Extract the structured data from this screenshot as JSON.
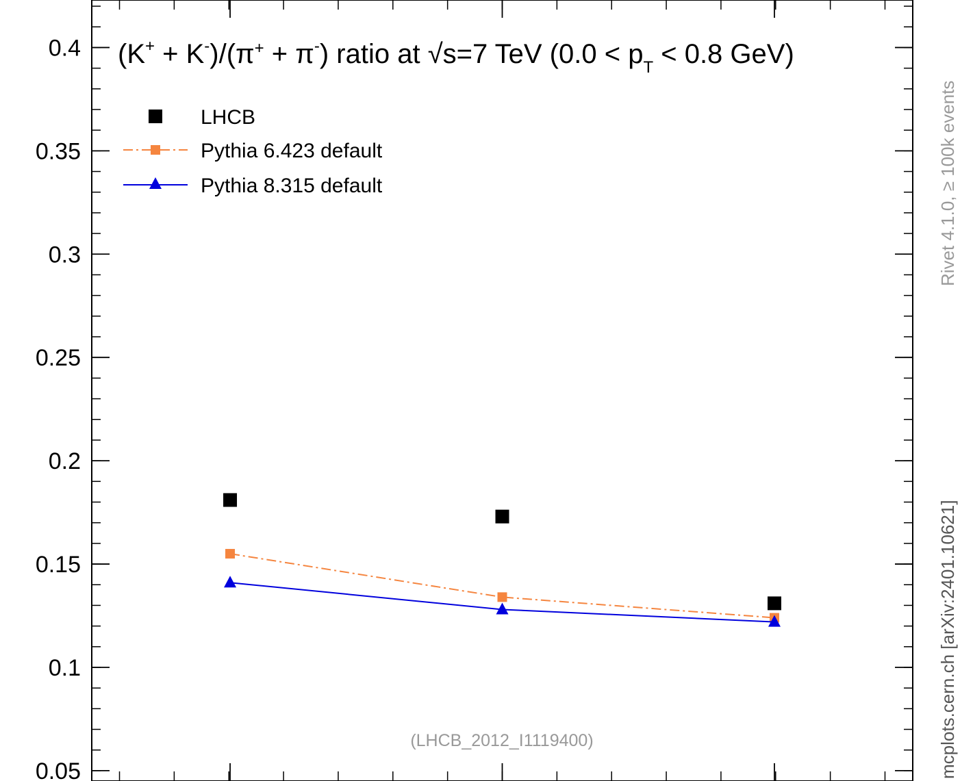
{
  "chart_data": {
    "type": "line",
    "title": {
      "k_base": "(K",
      "k_plus_sup": "+",
      "k_mid": " + K",
      "k_minus_sup": "-",
      "pi_open": ")/(π",
      "pi_plus_sup": "+",
      "pi_mid": " + π",
      "pi_minus_sup": "-",
      "close_text": ") ratio at ",
      "sqrt_sign": "√",
      "sqrt_arg": "s",
      "energy_text": "=7 TeV (0.0 < p",
      "pt_sub": "T",
      "range_end": " < 0.8 GeV)"
    },
    "ylim": [
      0.045,
      0.423
    ],
    "xlim": [
      0,
      1
    ],
    "y_ticks": [
      0.05,
      0.1,
      0.15,
      0.2,
      0.25,
      0.3,
      0.35,
      0.4
    ],
    "y_tick_labels": [
      "0.05",
      "0.1",
      "0.15",
      "0.2",
      "0.25",
      "0.3",
      "0.35",
      "0.4"
    ],
    "y_minor_step": 0.01,
    "x_major_ticks": [
      0.1685,
      0.5,
      0.8315
    ],
    "x_minor_step": 0.0666,
    "x": [
      0.1685,
      0.5,
      0.8315
    ],
    "series": [
      {
        "name": "LHCB",
        "values": [
          0.181,
          0.173,
          0.131
        ],
        "color": "#000000",
        "marker": "square",
        "line": "none"
      },
      {
        "name": "Pythia 6.423 default",
        "values": [
          0.155,
          0.134,
          0.124
        ],
        "color": "#f5853f",
        "marker": "square",
        "line": "dashdot"
      },
      {
        "name": "Pythia 8.315 default",
        "values": [
          0.141,
          0.128,
          0.122
        ],
        "color": "#0000dd",
        "marker": "triangle",
        "line": "solid"
      }
    ],
    "legend": "top-left",
    "grid": false,
    "annotation": "(LHCB_2012_I1119400)",
    "side_label_top": "Rivet 4.1.0, ≥ 100k events",
    "side_label_bottom": "mcplots.cern.ch [arXiv:2401.10621]"
  }
}
